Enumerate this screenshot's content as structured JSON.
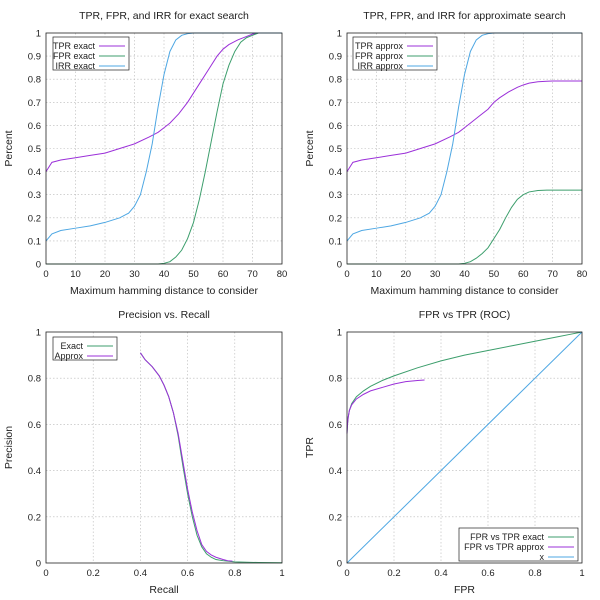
{
  "chart_data": [
    {
      "id": "exact",
      "type": "line",
      "title": "TPR, FPR, and IRR for exact search",
      "xlabel": "Maximum hamming distance to consider",
      "ylabel": "Percent",
      "xlim": [
        0,
        80
      ],
      "ylim": [
        0,
        1
      ],
      "xticks": [
        "0",
        "10",
        "20",
        "30",
        "40",
        "50",
        "60",
        "70",
        "80"
      ],
      "yticks": [
        "0",
        "0.1",
        "0.2",
        "0.3",
        "0.4",
        "0.5",
        "0.6",
        "0.7",
        "0.8",
        "0.9",
        "1"
      ],
      "grid": true,
      "legend_position": "top-left",
      "series": [
        {
          "name": "TPR exact",
          "color": "#9b30d9",
          "x": [
            0,
            2,
            5,
            10,
            15,
            20,
            25,
            30,
            35,
            38,
            40,
            42,
            45,
            48,
            50,
            52,
            55,
            58,
            60,
            62,
            65,
            68,
            70,
            72,
            75,
            78,
            80
          ],
          "y": [
            0.4,
            0.44,
            0.45,
            0.46,
            0.47,
            0.48,
            0.5,
            0.52,
            0.55,
            0.57,
            0.59,
            0.61,
            0.65,
            0.7,
            0.74,
            0.78,
            0.84,
            0.9,
            0.93,
            0.95,
            0.97,
            0.985,
            0.995,
            1.0,
            1.0,
            1.0,
            1.0
          ]
        },
        {
          "name": "FPR exact",
          "color": "#3c9e6c",
          "x": [
            0,
            10,
            20,
            30,
            38,
            40,
            42,
            44,
            46,
            48,
            50,
            52,
            54,
            56,
            58,
            60,
            62,
            64,
            66,
            68,
            70,
            72,
            75,
            80
          ],
          "y": [
            0,
            0,
            0,
            0,
            0,
            0.003,
            0.01,
            0.03,
            0.06,
            0.11,
            0.18,
            0.28,
            0.4,
            0.53,
            0.66,
            0.78,
            0.86,
            0.92,
            0.96,
            0.98,
            0.99,
            1.0,
            1.0,
            1.0
          ]
        },
        {
          "name": "IRR exact",
          "color": "#4ea7e3",
          "x": [
            0,
            2,
            5,
            10,
            15,
            20,
            25,
            28,
            30,
            32,
            34,
            36,
            38,
            40,
            42,
            44,
            46,
            48,
            50,
            55,
            60,
            70,
            80
          ],
          "y": [
            0.1,
            0.13,
            0.145,
            0.155,
            0.165,
            0.18,
            0.2,
            0.22,
            0.25,
            0.3,
            0.4,
            0.52,
            0.68,
            0.82,
            0.92,
            0.97,
            0.99,
            0.997,
            1.0,
            1.0,
            1.0,
            1.0,
            1.0
          ]
        }
      ]
    },
    {
      "id": "approx",
      "type": "line",
      "title": "TPR, FPR, and IRR for approximate search",
      "xlabel": "Maximum hamming distance to consider",
      "ylabel": "Percent",
      "xlim": [
        0,
        80
      ],
      "ylim": [
        0,
        1
      ],
      "xticks": [
        "0",
        "10",
        "20",
        "30",
        "40",
        "50",
        "60",
        "70",
        "80"
      ],
      "yticks": [
        "0",
        "0.1",
        "0.2",
        "0.3",
        "0.4",
        "0.5",
        "0.6",
        "0.7",
        "0.8",
        "0.9",
        "1"
      ],
      "grid": true,
      "legend_position": "top-left",
      "series": [
        {
          "name": "TPR approx",
          "color": "#9b30d9",
          "x": [
            0,
            2,
            5,
            10,
            15,
            20,
            25,
            30,
            35,
            38,
            40,
            42,
            45,
            48,
            50,
            52,
            55,
            58,
            60,
            62,
            65,
            68,
            70,
            75,
            80
          ],
          "y": [
            0.4,
            0.44,
            0.45,
            0.46,
            0.47,
            0.48,
            0.5,
            0.52,
            0.55,
            0.57,
            0.59,
            0.61,
            0.64,
            0.67,
            0.7,
            0.72,
            0.745,
            0.765,
            0.775,
            0.783,
            0.789,
            0.791,
            0.792,
            0.792,
            0.792
          ]
        },
        {
          "name": "FPR approx",
          "color": "#3c9e6c",
          "x": [
            0,
            10,
            20,
            30,
            38,
            40,
            42,
            44,
            46,
            48,
            50,
            52,
            54,
            56,
            58,
            60,
            62,
            65,
            68,
            70,
            75,
            80
          ],
          "y": [
            0,
            0,
            0,
            0,
            0,
            0.003,
            0.01,
            0.025,
            0.045,
            0.07,
            0.11,
            0.15,
            0.2,
            0.245,
            0.28,
            0.3,
            0.312,
            0.318,
            0.32,
            0.32,
            0.32,
            0.32
          ]
        },
        {
          "name": "IRR approx",
          "color": "#4ea7e3",
          "x": [
            0,
            2,
            5,
            10,
            15,
            20,
            25,
            28,
            30,
            32,
            34,
            36,
            38,
            40,
            42,
            44,
            46,
            48,
            50,
            55,
            60,
            70,
            80
          ],
          "y": [
            0.1,
            0.13,
            0.145,
            0.155,
            0.165,
            0.18,
            0.2,
            0.22,
            0.25,
            0.3,
            0.4,
            0.52,
            0.68,
            0.82,
            0.92,
            0.97,
            0.99,
            0.997,
            1.0,
            1.0,
            1.0,
            1.0,
            1.0
          ]
        }
      ]
    },
    {
      "id": "prec_recall",
      "type": "line",
      "title": "Precision vs. Recall",
      "xlabel": "Recall",
      "ylabel": "Precision",
      "xlim": [
        0,
        1
      ],
      "ylim": [
        0,
        1
      ],
      "xticks": [
        "0",
        "0.2",
        "0.4",
        "0.6",
        "0.8",
        "1"
      ],
      "yticks": [
        "0",
        "0.2",
        "0.4",
        "0.6",
        "0.8",
        "1"
      ],
      "grid": true,
      "legend_position": "top-left",
      "series": [
        {
          "name": "Exact",
          "color": "#3c9e6c",
          "x": [
            0.4,
            0.42,
            0.45,
            0.48,
            0.5,
            0.52,
            0.54,
            0.56,
            0.58,
            0.6,
            0.62,
            0.64,
            0.66,
            0.68,
            0.7,
            0.72,
            0.75,
            0.8,
            0.9,
            1.0
          ],
          "y": [
            0.91,
            0.88,
            0.85,
            0.81,
            0.77,
            0.72,
            0.65,
            0.55,
            0.42,
            0.3,
            0.2,
            0.12,
            0.07,
            0.04,
            0.025,
            0.015,
            0.01,
            0.005,
            0.002,
            0.001
          ]
        },
        {
          "name": "Approx",
          "color": "#9b30d9",
          "x": [
            0.4,
            0.42,
            0.45,
            0.48,
            0.5,
            0.52,
            0.54,
            0.56,
            0.58,
            0.6,
            0.62,
            0.64,
            0.66,
            0.68,
            0.7,
            0.72,
            0.75,
            0.77,
            0.79
          ],
          "y": [
            0.91,
            0.88,
            0.85,
            0.81,
            0.77,
            0.72,
            0.65,
            0.56,
            0.44,
            0.32,
            0.22,
            0.14,
            0.08,
            0.05,
            0.035,
            0.025,
            0.015,
            0.01,
            0.008
          ]
        }
      ]
    },
    {
      "id": "roc",
      "type": "line",
      "title": "FPR vs TPR (ROC)",
      "xlabel": "FPR",
      "ylabel": "TPR",
      "xlim": [
        0,
        1
      ],
      "ylim": [
        0,
        1
      ],
      "xticks": [
        "0",
        "0.2",
        "0.4",
        "0.6",
        "0.8",
        "1"
      ],
      "yticks": [
        "0",
        "0.2",
        "0.4",
        "0.6",
        "0.8",
        "1"
      ],
      "grid": true,
      "legend_position": "bottom-right",
      "series": [
        {
          "name": "FPR vs TPR exact",
          "color": "#3c9e6c",
          "x": [
            0,
            0.002,
            0.005,
            0.01,
            0.02,
            0.04,
            0.07,
            0.1,
            0.15,
            0.2,
            0.3,
            0.4,
            0.5,
            0.6,
            0.7,
            0.8,
            0.9,
            0.95,
            1.0
          ],
          "y": [
            0.56,
            0.6,
            0.63,
            0.66,
            0.69,
            0.72,
            0.745,
            0.765,
            0.79,
            0.81,
            0.845,
            0.875,
            0.9,
            0.92,
            0.94,
            0.96,
            0.98,
            0.99,
            1.0
          ]
        },
        {
          "name": "FPR vs TPR approx",
          "color": "#9b30d9",
          "x": [
            0,
            0.002,
            0.005,
            0.01,
            0.02,
            0.04,
            0.07,
            0.1,
            0.15,
            0.2,
            0.25,
            0.3,
            0.33
          ],
          "y": [
            0.56,
            0.6,
            0.63,
            0.66,
            0.685,
            0.71,
            0.73,
            0.745,
            0.76,
            0.775,
            0.785,
            0.79,
            0.792
          ]
        },
        {
          "name": "x",
          "color": "#4ea7e3",
          "x": [
            0,
            1
          ],
          "y": [
            0,
            1
          ]
        }
      ]
    }
  ]
}
